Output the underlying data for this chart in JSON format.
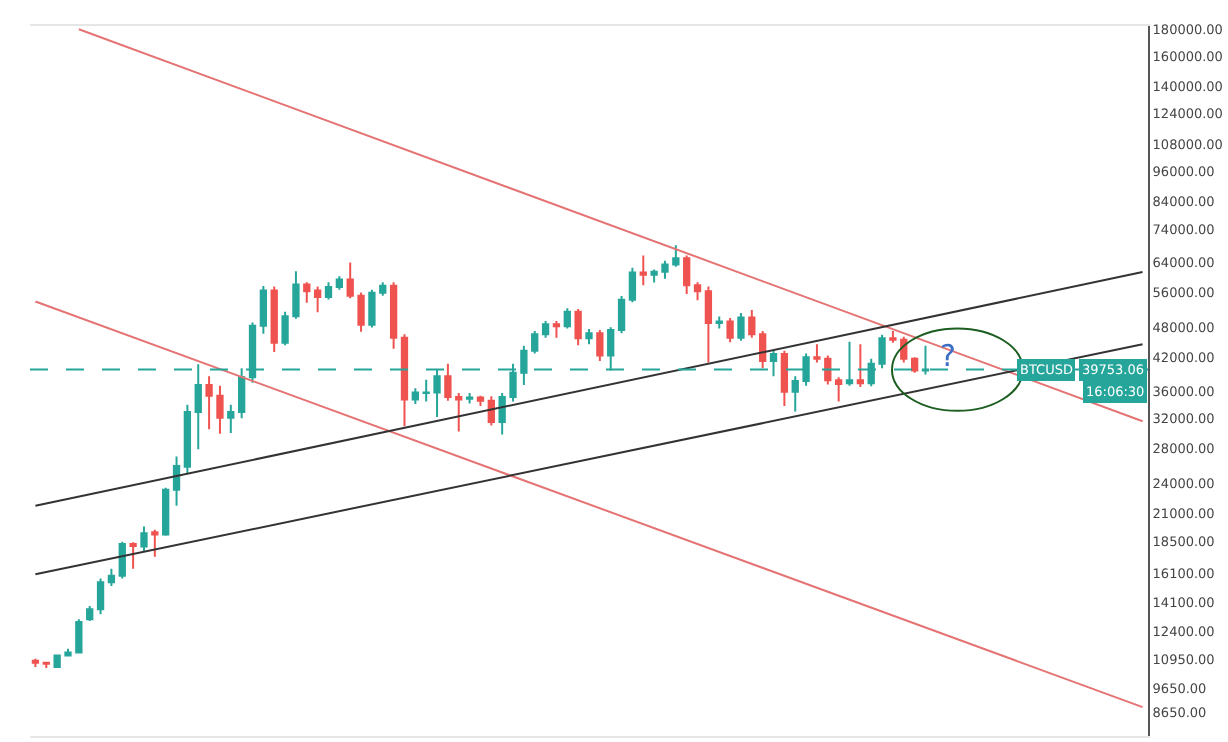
{
  "chart_data": {
    "type": "candlestick",
    "categories": [
      null,
      null,
      null,
      null,
      null,
      null,
      null,
      null,
      null,
      null,
      null,
      null,
      null,
      null,
      null,
      null,
      null,
      null,
      null,
      null,
      null,
      null,
      null,
      null,
      null,
      null,
      null,
      null,
      null,
      null,
      null,
      null,
      null,
      null,
      null,
      null,
      null,
      null,
      null,
      null,
      null,
      null,
      null,
      null,
      null,
      null,
      null,
      null,
      null,
      null,
      null,
      null,
      null,
      null,
      null,
      null,
      null,
      null,
      null,
      null,
      null,
      null,
      null,
      null,
      null,
      null,
      null,
      null,
      null,
      null,
      null,
      null,
      null,
      null,
      null,
      null,
      null,
      null,
      null,
      null,
      null,
      null,
      null,
      null,
      null,
      null,
      null,
      null,
      null,
      null,
      null,
      null,
      null,
      null,
      null,
      null,
      null,
      null,
      null,
      null,
      null,
      null,
      null
    ],
    "ohlc": [
      [
        10900,
        11000,
        10600,
        10800
      ],
      [
        10800,
        10850,
        10550,
        10750
      ],
      [
        10600,
        11200,
        10550,
        11150
      ],
      [
        11150,
        11500,
        11100,
        11300
      ],
      [
        11300,
        13100,
        11250,
        12950
      ],
      [
        13100,
        13900,
        13000,
        13700
      ],
      [
        13700,
        15700,
        13400,
        15450
      ],
      [
        15450,
        16400,
        15200,
        15900
      ],
      [
        15900,
        18500,
        15700,
        18300
      ],
      [
        18300,
        18450,
        16400,
        18150
      ],
      [
        18100,
        19800,
        17700,
        19200
      ],
      [
        19300,
        19500,
        17300,
        19100
      ],
      [
        19100,
        23500,
        19000,
        23300
      ],
      [
        23300,
        27000,
        21700,
        25900
      ],
      [
        25800,
        34000,
        25000,
        32900
      ],
      [
        32900,
        40700,
        27900,
        37100
      ],
      [
        37100,
        38600,
        30500,
        35400
      ],
      [
        35400,
        37000,
        29900,
        32100
      ],
      [
        32100,
        34000,
        30000,
        32900
      ],
      [
        32900,
        40000,
        32000,
        38400
      ],
      [
        38400,
        49000,
        37500,
        48300
      ],
      [
        48300,
        57600,
        46600,
        56500
      ],
      [
        56500,
        57500,
        43000,
        44800
      ],
      [
        44800,
        51400,
        44300,
        50400
      ],
      [
        50400,
        61500,
        49800,
        58000
      ],
      [
        58000,
        58600,
        53500,
        56300
      ],
      [
        56500,
        57500,
        51300,
        54900
      ],
      [
        54900,
        58600,
        54300,
        57400
      ],
      [
        57400,
        60200,
        56700,
        59300
      ],
      [
        59300,
        64000,
        54600,
        55200
      ],
      [
        55200,
        56000,
        47000,
        48500
      ],
      [
        48500,
        56700,
        47900,
        55900
      ],
      [
        55900,
        58600,
        55200,
        57700
      ],
      [
        57700,
        58600,
        43600,
        45800
      ],
      [
        45800,
        46500,
        30900,
        34800
      ],
      [
        34800,
        36600,
        34100,
        35900
      ],
      [
        35800,
        38000,
        34500,
        35900
      ],
      [
        35900,
        39800,
        32200,
        38600
      ],
      [
        38600,
        40800,
        34600,
        35200
      ],
      [
        35200,
        35800,
        30200,
        34800
      ],
      [
        34900,
        35800,
        34200,
        35100
      ],
      [
        35100,
        35400,
        33800,
        34600
      ],
      [
        34600,
        35300,
        31000,
        31500
      ],
      [
        31500,
        35800,
        29800,
        35200
      ],
      [
        35200,
        40800,
        34500,
        39200
      ],
      [
        39200,
        44200,
        37100,
        43200
      ],
      [
        43200,
        47200,
        42700,
        46500
      ],
      [
        46500,
        49300,
        45800,
        48600
      ],
      [
        48600,
        49300,
        45800,
        48200
      ],
      [
        48200,
        52200,
        47700,
        51400
      ],
      [
        51400,
        52000,
        44300,
        45700
      ],
      [
        45700,
        47600,
        44500,
        46700
      ],
      [
        46700,
        47400,
        41300,
        42300
      ],
      [
        42300,
        48000,
        39600,
        47400
      ],
      [
        47400,
        55100,
        46700,
        54200
      ],
      [
        54200,
        62500,
        53600,
        61200
      ],
      [
        61200,
        66000,
        57800,
        60600
      ],
      [
        60600,
        62000,
        58500,
        61400
      ],
      [
        61400,
        64500,
        59500,
        63400
      ],
      [
        63400,
        69100,
        62800,
        65200
      ],
      [
        65200,
        66000,
        55600,
        57800
      ],
      [
        57800,
        58600,
        54100,
        56300
      ],
      [
        56300,
        57500,
        41000,
        48900
      ],
      [
        48900,
        50300,
        47700,
        49200
      ],
      [
        49200,
        50000,
        44900,
        45800
      ],
      [
        45800,
        51100,
        45200,
        50100
      ],
      [
        50100,
        51800,
        45800,
        46500
      ],
      [
        46500,
        47200,
        40000,
        41300
      ],
      [
        41300,
        43200,
        38600,
        42600
      ],
      [
        42600,
        43200,
        33800,
        36000
      ],
      [
        36000,
        38600,
        33000,
        37800
      ],
      [
        37800,
        42700,
        37000,
        42000
      ],
      [
        42000,
        44500,
        41000,
        41700
      ],
      [
        41700,
        42300,
        37200,
        37900
      ],
      [
        37900,
        38400,
        34500,
        37300
      ],
      [
        37400,
        45000,
        37000,
        37900
      ],
      [
        37900,
        44500,
        36800,
        37400
      ],
      [
        37400,
        41700,
        36900,
        40800
      ],
      [
        40800,
        46400,
        40000,
        45700
      ],
      [
        45700,
        47200,
        44800,
        45400
      ],
      [
        45400,
        46000,
        41000,
        41700
      ],
      [
        41700,
        42000,
        39200,
        39600
      ],
      [
        39600,
        44200,
        38900,
        39750
      ],
      null,
      null,
      null,
      null,
      null,
      null,
      null,
      null,
      null,
      null,
      null,
      null,
      null,
      null,
      null,
      null,
      null,
      null,
      null,
      null
    ],
    "colors": [
      "#ef5350",
      "#ef5350",
      "#26a69a",
      "#26a69a",
      "#26a69a",
      "#26a69a",
      "#26a69a",
      "#26a69a",
      "#26a69a",
      "#ef5350",
      "#26a69a",
      "#ef5350",
      "#26a69a",
      "#26a69a",
      "#26a69a",
      "#26a69a",
      "#ef5350",
      "#ef5350",
      "#26a69a",
      "#26a69a",
      "#26a69a",
      "#26a69a",
      "#ef5350",
      "#26a69a",
      "#26a69a",
      "#ef5350",
      "#ef5350",
      "#26a69a",
      "#26a69a",
      "#ef5350",
      "#ef5350",
      "#26a69a",
      "#26a69a",
      "#ef5350",
      "#ef5350",
      "#26a69a",
      "#26a69a",
      "#26a69a",
      "#ef5350",
      "#ef5350",
      "#26a69a",
      "#ef5350",
      "#ef5350",
      "#26a69a",
      "#26a69a",
      "#26a69a",
      "#26a69a",
      "#26a69a",
      "#ef5350",
      "#26a69a",
      "#ef5350",
      "#26a69a",
      "#ef5350",
      "#26a69a",
      "#26a69a",
      "#26a69a",
      "#ef5350",
      "#26a69a",
      "#26a69a",
      "#26a69a",
      "#ef5350",
      "#ef5350",
      "#ef5350",
      "#26a69a",
      "#ef5350",
      "#26a69a",
      "#ef5350",
      "#ef5350",
      "#26a69a",
      "#ef5350",
      "#26a69a",
      "#26a69a",
      "#ef5350",
      "#ef5350",
      "#ef5350",
      "#26a69a",
      "#ef5350",
      "#26a69a",
      "#26a69a",
      "#ef5350",
      "#ef5350",
      "#ef5350",
      "#26a69a",
      null,
      null,
      null,
      null,
      null,
      null,
      null,
      null,
      null,
      null,
      null,
      null,
      null,
      null,
      null,
      null,
      null,
      null,
      null,
      null
    ],
    "series": [
      {
        "type": "line",
        "color": "#e57373",
        "values": [
          null,
          null,
          null,
          null,
          180400,
          null,
          null,
          null,
          null,
          null,
          null,
          null,
          null,
          null,
          null,
          null,
          null,
          null,
          null,
          null,
          null,
          null,
          null,
          null,
          null,
          null,
          null,
          null,
          null,
          null,
          null,
          null,
          null,
          null,
          null,
          null,
          null,
          null,
          null,
          null,
          null,
          null,
          null,
          null,
          null,
          null,
          null,
          null,
          null,
          null,
          null,
          null,
          null,
          null,
          null,
          null,
          null,
          null,
          null,
          null,
          null,
          null,
          null,
          null,
          null,
          null,
          null,
          null,
          null,
          null,
          null,
          null,
          null,
          null,
          null,
          null,
          null,
          null,
          null,
          null,
          null,
          null,
          null,
          null,
          null,
          null,
          null,
          null,
          null,
          null,
          null,
          null,
          null,
          null,
          null,
          null,
          null,
          null,
          null,
          null,
          null,
          null,
          31600
        ]
      },
      {
        "type": "line",
        "color": "#e57373",
        "values": [
          53800,
          null,
          null,
          null,
          null,
          null,
          null,
          null,
          null,
          null,
          null,
          null,
          null,
          null,
          null,
          null,
          null,
          null,
          null,
          null,
          null,
          null,
          null,
          null,
          null,
          null,
          null,
          null,
          null,
          null,
          null,
          null,
          null,
          null,
          null,
          null,
          null,
          null,
          null,
          null,
          null,
          null,
          null,
          null,
          null,
          null,
          null,
          null,
          null,
          null,
          null,
          null,
          null,
          null,
          null,
          null,
          null,
          null,
          null,
          null,
          null,
          null,
          null,
          null,
          null,
          null,
          null,
          null,
          null,
          null,
          null,
          null,
          null,
          null,
          null,
          null,
          null,
          null,
          null,
          null,
          null,
          null,
          null,
          null,
          null,
          null,
          null,
          null,
          null,
          null,
          null,
          null,
          null,
          null,
          null,
          null,
          null,
          null,
          null,
          null,
          null,
          null,
          8870
        ]
      },
      {
        "type": "line",
        "color": "#333333",
        "values": [
          21700,
          null,
          null,
          null,
          null,
          null,
          null,
          null,
          null,
          null,
          null,
          null,
          null,
          null,
          null,
          null,
          null,
          null,
          null,
          null,
          null,
          null,
          null,
          null,
          null,
          null,
          null,
          null,
          null,
          null,
          null,
          null,
          null,
          null,
          null,
          null,
          null,
          null,
          null,
          null,
          null,
          null,
          null,
          null,
          null,
          null,
          null,
          null,
          null,
          null,
          null,
          null,
          null,
          null,
          null,
          null,
          null,
          null,
          null,
          null,
          null,
          null,
          null,
          null,
          null,
          null,
          null,
          null,
          null,
          null,
          null,
          null,
          null,
          null,
          null,
          null,
          null,
          null,
          null,
          null,
          null,
          null,
          null,
          null,
          null,
          null,
          null,
          null,
          null,
          null,
          null,
          null,
          null,
          null,
          null,
          null,
          null,
          null,
          null,
          null,
          null,
          null,
          61300
        ]
      },
      {
        "type": "line",
        "color": "#333333",
        "values": [
          16000,
          null,
          null,
          null,
          null,
          null,
          null,
          null,
          null,
          null,
          null,
          null,
          null,
          null,
          null,
          null,
          null,
          null,
          null,
          null,
          null,
          null,
          null,
          null,
          null,
          null,
          null,
          null,
          null,
          null,
          null,
          null,
          null,
          null,
          null,
          null,
          null,
          null,
          null,
          null,
          null,
          null,
          null,
          null,
          null,
          null,
          null,
          null,
          null,
          null,
          null,
          null,
          null,
          null,
          null,
          null,
          null,
          null,
          null,
          null,
          null,
          null,
          null,
          null,
          null,
          null,
          null,
          null,
          null,
          null,
          null,
          null,
          null,
          null,
          null,
          null,
          null,
          null,
          null,
          null,
          null,
          null,
          null,
          null,
          null,
          null,
          null,
          null,
          null,
          null,
          null,
          null,
          null,
          null,
          null,
          null,
          null,
          null,
          null,
          null,
          null,
          null,
          44500
        ]
      }
    ],
    "ref_lines": [
      {
        "axis": "y",
        "value": 39753.06,
        "label": "39753.06",
        "color": "#26a69a",
        "line_style": "dashed"
      }
    ],
    "annotations": [
      "BTCUSD",
      "16:06:30",
      "?"
    ],
    "ylim": [
      7800,
      183000
    ],
    "log": true,
    "yticks": [
      {
        "value": 180000,
        "label": "180000.00"
      },
      {
        "value": 160000,
        "label": "160000.00"
      },
      {
        "value": 140000,
        "label": "140000.00"
      },
      {
        "value": 124000,
        "label": "124000.00"
      },
      {
        "value": 108000,
        "label": "108000.00"
      },
      {
        "value": 96000,
        "label": "96000.00"
      },
      {
        "value": 84000,
        "label": "84000.00"
      },
      {
        "value": 74000,
        "label": "74000.00"
      },
      {
        "value": 64000,
        "label": "64000.00"
      },
      {
        "value": 56000,
        "label": "56000.00"
      },
      {
        "value": 48000,
        "label": "48000.00"
      },
      {
        "value": 42000,
        "label": "42000.00"
      },
      {
        "value": 36000,
        "label": "36000.00"
      },
      {
        "value": 32000,
        "label": "32000.00"
      },
      {
        "value": 28000,
        "label": "28000.00"
      },
      {
        "value": 24000,
        "label": "24000.00"
      },
      {
        "value": 21000,
        "label": "21000.00"
      },
      {
        "value": 18500,
        "label": "18500.00"
      },
      {
        "value": 16100,
        "label": "16100.00"
      },
      {
        "value": 14100,
        "label": "14100.00"
      },
      {
        "value": 12400,
        "label": "12400.00"
      },
      {
        "value": 10950,
        "label": "10950.00"
      },
      {
        "value": 9650,
        "label": "9650.00"
      },
      {
        "value": 8650,
        "label": "8650.00"
      }
    ],
    "tick_labels": "y"
  }
}
